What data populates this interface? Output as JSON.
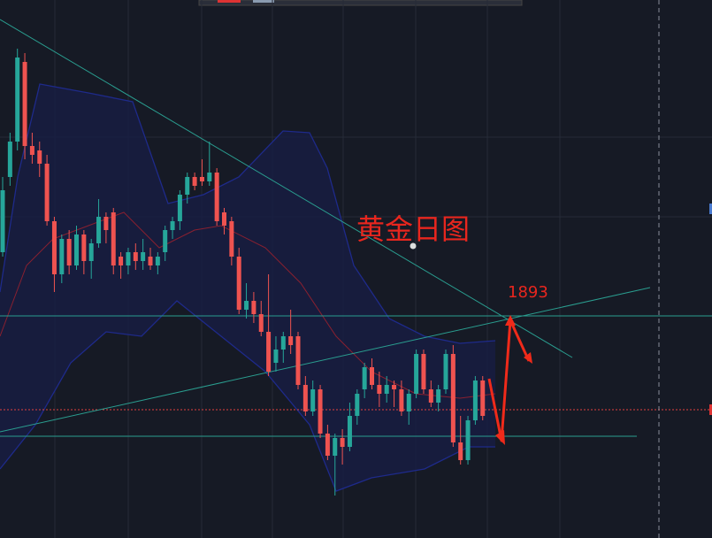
{
  "annotation": {
    "title": "黄金日图",
    "level": "1893"
  }
}
